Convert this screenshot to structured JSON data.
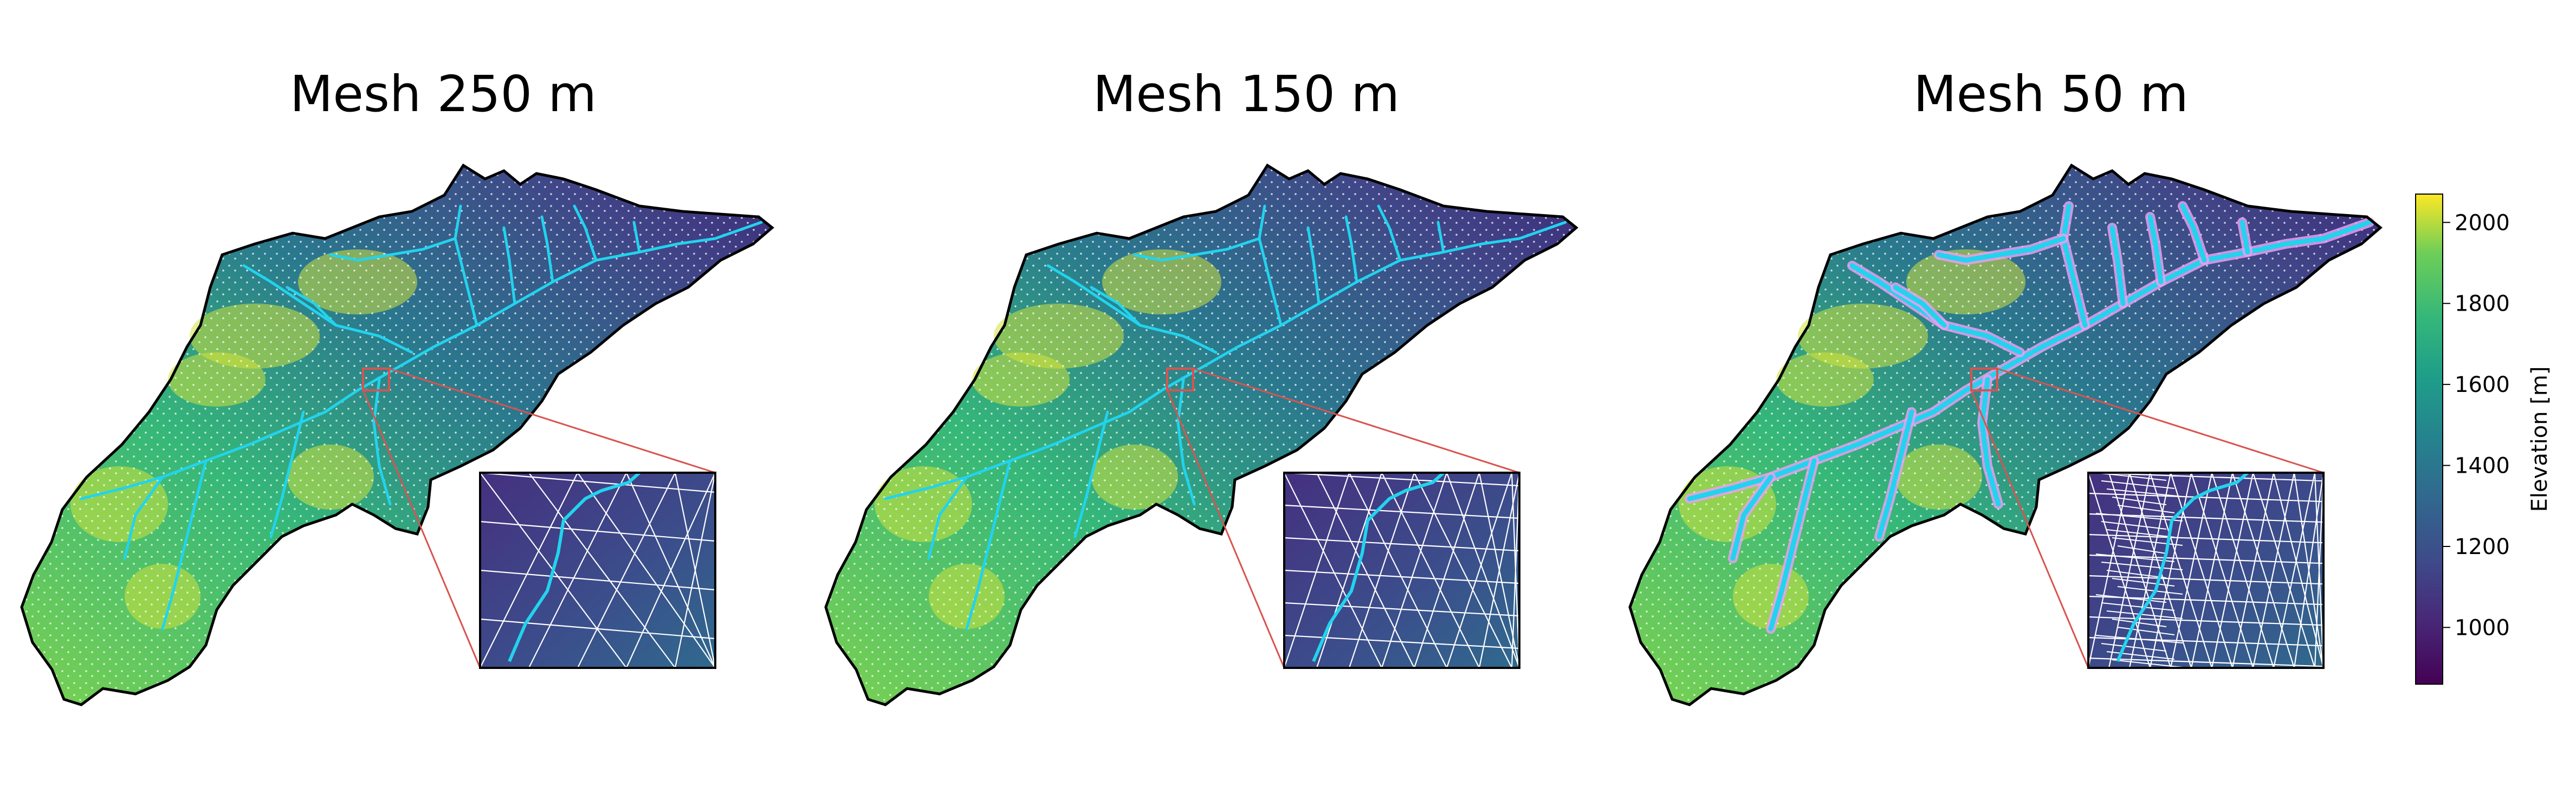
{
  "panels": [
    {
      "title": "Mesh 250 m",
      "mesh_size_m": 250
    },
    {
      "title": "Mesh 150 m",
      "mesh_size_m": 150
    },
    {
      "title": "Mesh 50 m",
      "mesh_size_m": 50
    }
  ],
  "colorbar": {
    "label": "Elevation [m]",
    "colormap": "viridis",
    "range": [
      860,
      2070
    ],
    "ticks": [
      "1000",
      "1200",
      "1400",
      "1600",
      "1800",
      "2000"
    ]
  },
  "colors": {
    "boundary": "#000000",
    "river": "#22d3ee",
    "river_buffer": "#e9a0f0",
    "mesh_lines": "#ffffff",
    "zoom_box": "#d9534f"
  }
}
